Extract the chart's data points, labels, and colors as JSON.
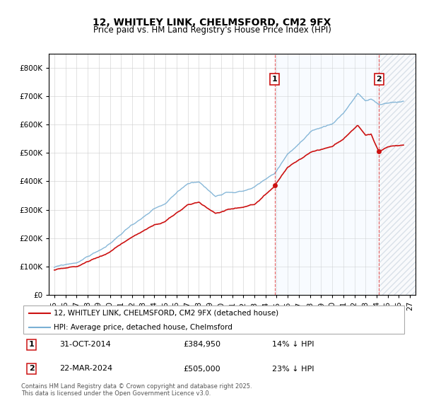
{
  "title": "12, WHITLEY LINK, CHELMSFORD, CM2 9FX",
  "subtitle": "Price paid vs. HM Land Registry's House Price Index (HPI)",
  "legend_line1": "12, WHITLEY LINK, CHELMSFORD, CM2 9FX (detached house)",
  "legend_line2": "HPI: Average price, detached house, Chelmsford",
  "annotation1_label": "1",
  "annotation1_date": "31-OCT-2014",
  "annotation1_price": "£384,950",
  "annotation1_text": "14% ↓ HPI",
  "annotation1_year": 2014.83,
  "annotation1_value": 384950,
  "annotation2_label": "2",
  "annotation2_date": "22-MAR-2024",
  "annotation2_price": "£505,000",
  "annotation2_text": "23% ↓ HPI",
  "annotation2_year": 2024.22,
  "annotation2_value": 505000,
  "footer": "Contains HM Land Registry data © Crown copyright and database right 2025.\nThis data is licensed under the Open Government Licence v3.0.",
  "hpi_color": "#7ab0d4",
  "price_color": "#cc1111",
  "annotation_color": "#cc1111",
  "background_color": "#ffffff",
  "shade_color": "#ddeeff",
  "hatch_color": "#e0e8f0",
  "ylim": [
    0,
    850000
  ],
  "yticks": [
    0,
    100000,
    200000,
    300000,
    400000,
    500000,
    600000,
    700000,
    800000
  ],
  "xlim_start": 1994.5,
  "xlim_end": 2027.5,
  "xtick_years": [
    1995,
    1996,
    1997,
    1998,
    1999,
    2000,
    2001,
    2002,
    2003,
    2004,
    2005,
    2006,
    2007,
    2008,
    2009,
    2010,
    2011,
    2012,
    2013,
    2014,
    2015,
    2016,
    2017,
    2018,
    2019,
    2020,
    2021,
    2022,
    2023,
    2024,
    2025,
    2026,
    2027
  ]
}
